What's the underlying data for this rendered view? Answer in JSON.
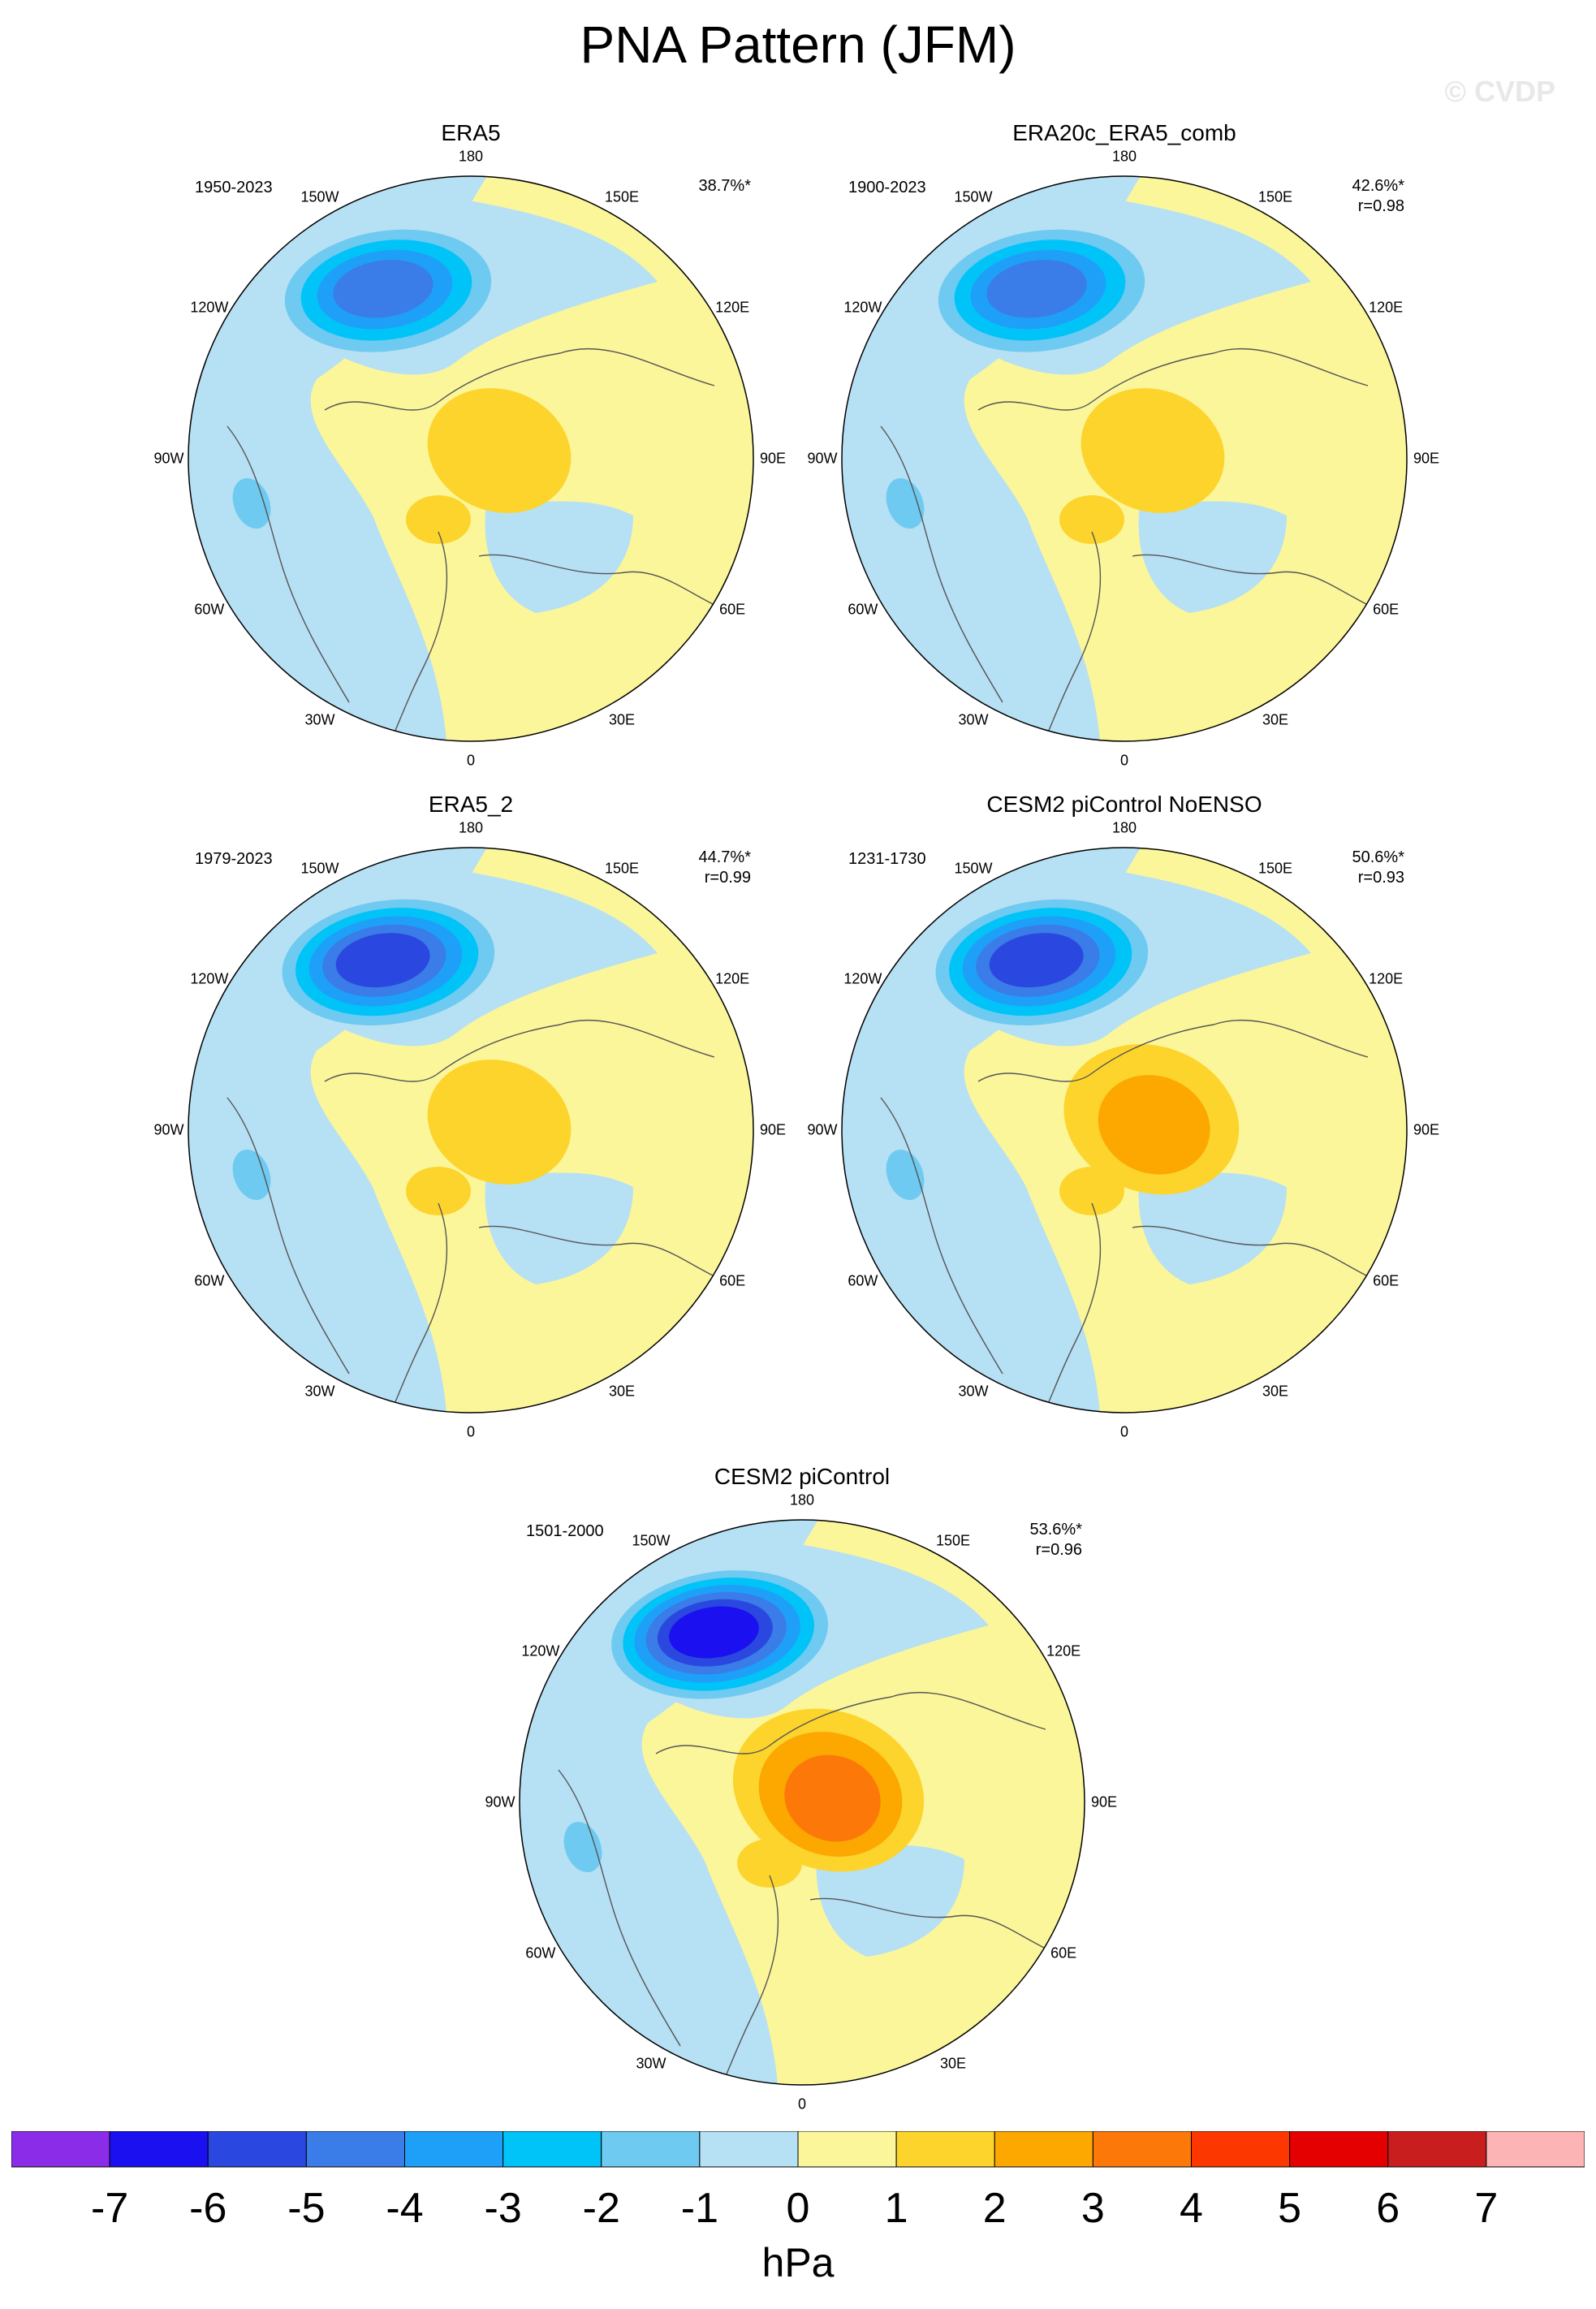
{
  "title": "PNA Pattern (JFM)",
  "watermark": "© CVDP",
  "units": "hPa",
  "chart_data": {
    "type": "polar contour map",
    "variable": "sea level pressure anomaly (PNA pattern regression)",
    "units": "hPa",
    "colorbar": {
      "ticks": [
        "-7",
        "-6",
        "-5",
        "-4",
        "-3",
        "-2",
        "-1",
        "0",
        "1",
        "2",
        "3",
        "4",
        "5",
        "6",
        "7"
      ],
      "colors": [
        "#8a2ce8",
        "#1a10f0",
        "#2a48e0",
        "#3a7ce8",
        "#1ea0f8",
        "#00c4f8",
        "#6ecaf0",
        "#b6e0f4",
        "#fcf69a",
        "#fcd42c",
        "#fca800",
        "#fc7808",
        "#fc3800",
        "#e40000",
        "#c81e1e",
        "#fcb4b4"
      ]
    },
    "longitude_labels": [
      "180",
      "150E",
      "120E",
      "90E",
      "60E",
      "30E",
      "0",
      "30W",
      "60W",
      "90W",
      "120W",
      "150W"
    ],
    "panels": [
      {
        "name": "ERA5",
        "period": "1950-2023",
        "pct": "38.7%*",
        "r": "",
        "min_level": -5,
        "max_level": 2
      },
      {
        "name": "ERA20c_ERA5_comb",
        "period": "1900-2023",
        "pct": "42.6%*",
        "r": "r=0.98",
        "min_level": -5,
        "max_level": 2
      },
      {
        "name": "ERA5_2",
        "period": "1979-2023",
        "pct": "44.7%*",
        "r": "r=0.99",
        "min_level": -6,
        "max_level": 2
      },
      {
        "name": "CESM2 piControl NoENSO",
        "period": "1231-1730",
        "pct": "50.6%*",
        "r": "r=0.93",
        "min_level": -6,
        "max_level": 3
      },
      {
        "name": "CESM2 piControl",
        "period": "1501-2000",
        "pct": "53.6%*",
        "r": "r=0.96",
        "min_level": -7,
        "max_level": 4
      }
    ]
  }
}
